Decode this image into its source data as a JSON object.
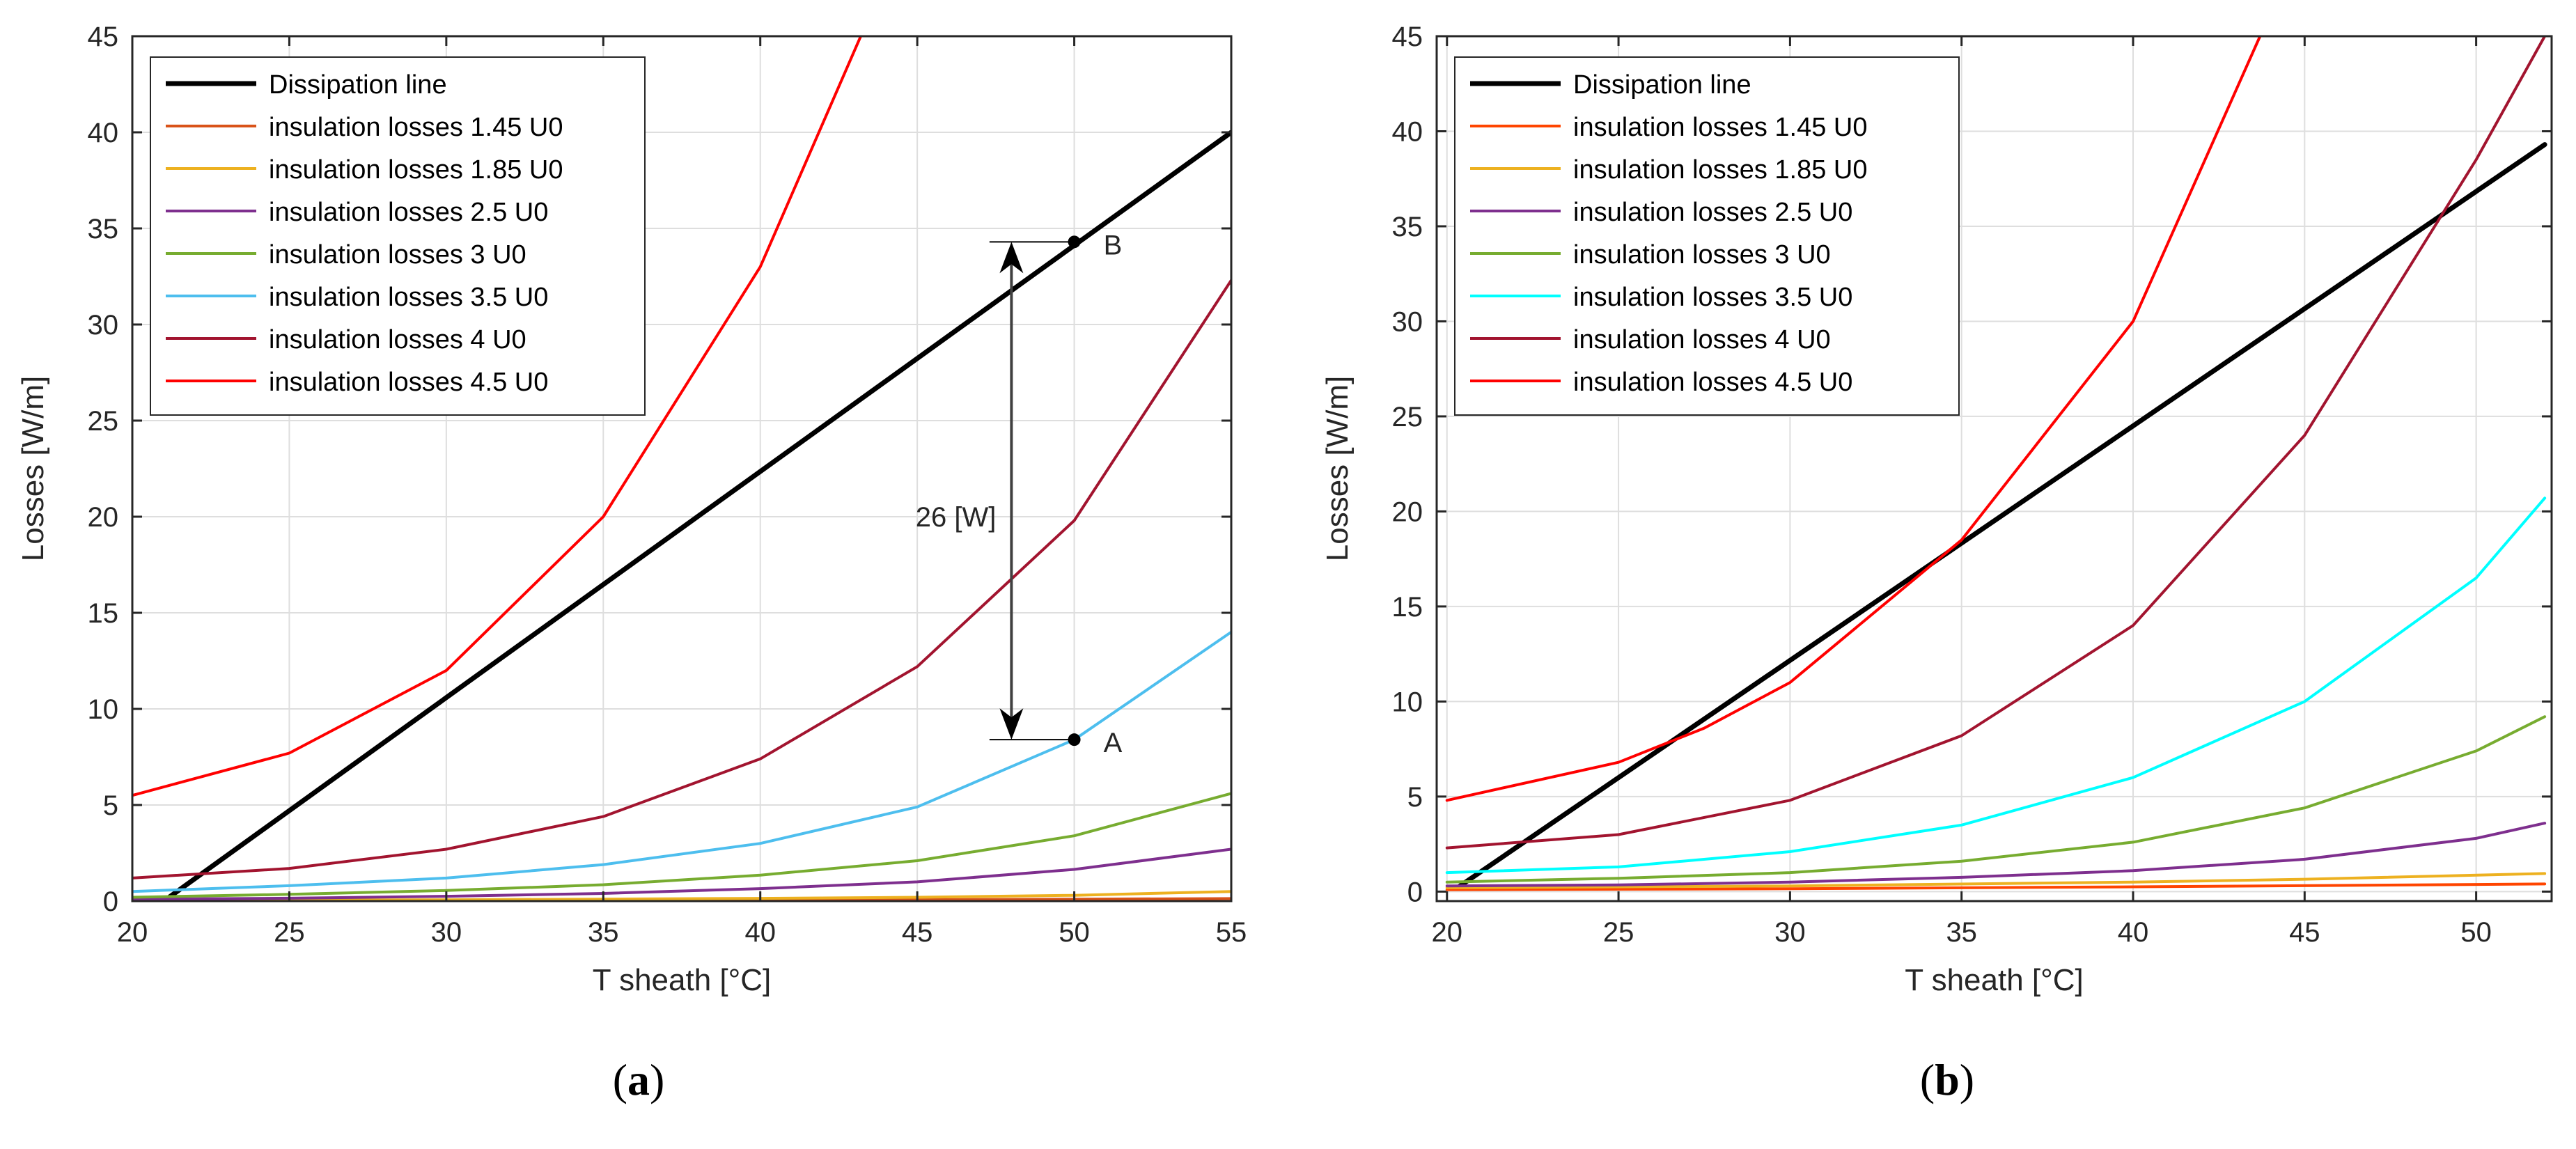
{
  "chart_data": [
    {
      "type": "line",
      "panel_caption": "(a)",
      "caption_letter": "a",
      "xlabel": "T sheath [°C]",
      "ylabel": "Losses [W/m]",
      "xlim": [
        20,
        55
      ],
      "ylim": [
        0,
        45
      ],
      "xticks": [
        20,
        25,
        30,
        35,
        40,
        45,
        50,
        55
      ],
      "yticks": [
        0,
        5,
        10,
        15,
        20,
        25,
        30,
        35,
        40,
        45
      ],
      "grid": true,
      "legend_position": "top-left",
      "series": [
        {
          "name": "Dissipation line",
          "color": "#000000",
          "bold": true,
          "x": [
            21,
            55
          ],
          "y": [
            0,
            40
          ]
        },
        {
          "name": "insulation losses 1.45 U0",
          "color": "#d95319",
          "x": [
            20,
            30,
            40,
            45,
            50,
            55
          ],
          "y": [
            0.02,
            0.03,
            0.05,
            0.07,
            0.1,
            0.13
          ]
        },
        {
          "name": "insulation losses 1.85 U0",
          "color": "#edb120",
          "x": [
            20,
            30,
            40,
            45,
            50,
            55
          ],
          "y": [
            0.04,
            0.07,
            0.14,
            0.2,
            0.3,
            0.5
          ]
        },
        {
          "name": "insulation losses 2.5 U0",
          "color": "#7e2f8e",
          "x": [
            20,
            25,
            30,
            35,
            40,
            45,
            50,
            55
          ],
          "y": [
            0.1,
            0.15,
            0.25,
            0.4,
            0.65,
            1.0,
            1.65,
            2.7
          ]
        },
        {
          "name": "insulation losses 3 U0",
          "color": "#77ac30",
          "x": [
            20,
            25,
            30,
            35,
            40,
            45,
            50,
            55
          ],
          "y": [
            0.2,
            0.35,
            0.55,
            0.85,
            1.35,
            2.1,
            3.4,
            5.6
          ]
        },
        {
          "name": "insulation losses 3.5 U0",
          "color": "#4dbeee",
          "x": [
            20,
            25,
            30,
            35,
            40,
            45,
            50,
            55
          ],
          "y": [
            0.5,
            0.8,
            1.2,
            1.9,
            3.0,
            4.9,
            8.4,
            14.0
          ]
        },
        {
          "name": "insulation losses 4 U0",
          "color": "#a2142f",
          "x": [
            20,
            25,
            30,
            35,
            40,
            45,
            50,
            55
          ],
          "y": [
            1.2,
            1.7,
            2.7,
            4.4,
            7.4,
            12.2,
            19.8,
            32.3
          ]
        },
        {
          "name": "insulation losses 4.5 U0",
          "color": "#ff0000",
          "x": [
            20,
            25,
            30,
            35,
            40,
            43.2
          ],
          "y": [
            5.5,
            7.7,
            12.0,
            20.0,
            33.0,
            45.0
          ]
        }
      ],
      "annotations": [
        {
          "label": "B",
          "x": 50,
          "y": 34.3
        },
        {
          "label": "A",
          "x": 50,
          "y": 8.4
        },
        {
          "label": "26 [W]",
          "arrow_x": 48,
          "arrow_from": 34.3,
          "arrow_to": 8.4
        }
      ]
    },
    {
      "type": "line",
      "panel_caption": "(b)",
      "caption_letter": "b",
      "xlabel": "T sheath [°C]",
      "ylabel": "Losses [W/m]",
      "xlim": [
        19.7,
        52.2
      ],
      "ylim": [
        -0.5,
        45
      ],
      "xticks": [
        20,
        25,
        30,
        35,
        40,
        45,
        50
      ],
      "yticks": [
        0,
        5,
        10,
        15,
        20,
        25,
        30,
        35,
        40,
        45
      ],
      "grid": true,
      "legend_position": "top-left",
      "series": [
        {
          "name": "Dissipation line",
          "color": "#000000",
          "bold": true,
          "x": [
            20.3,
            52
          ],
          "y": [
            0.2,
            39.3
          ]
        },
        {
          "name": "insulation losses 1.45 U0",
          "color": "#ff4500",
          "x": [
            20,
            30,
            40,
            52
          ],
          "y": [
            0.1,
            0.15,
            0.25,
            0.4
          ]
        },
        {
          "name": "insulation losses 1.85 U0",
          "color": "#edb120",
          "x": [
            20,
            30,
            40,
            45,
            52
          ],
          "y": [
            0.2,
            0.3,
            0.5,
            0.65,
            0.95
          ]
        },
        {
          "name": "insulation losses 2.5 U0",
          "color": "#7e2f8e",
          "x": [
            20,
            25,
            30,
            35,
            40,
            45,
            50,
            52
          ],
          "y": [
            0.3,
            0.35,
            0.5,
            0.75,
            1.1,
            1.7,
            2.8,
            3.6
          ]
        },
        {
          "name": "insulation losses 3 U0",
          "color": "#77ac30",
          "x": [
            20,
            25,
            30,
            35,
            40,
            45,
            50,
            52
          ],
          "y": [
            0.5,
            0.7,
            1.0,
            1.6,
            2.6,
            4.4,
            7.4,
            9.2
          ]
        },
        {
          "name": "insulation losses 3.5 U0",
          "color": "#00ffff",
          "x": [
            20,
            25,
            30,
            35,
            40,
            45,
            50,
            52
          ],
          "y": [
            1.0,
            1.3,
            2.1,
            3.5,
            6.0,
            10.0,
            16.5,
            20.7
          ]
        },
        {
          "name": "insulation losses 4 U0",
          "color": "#a2142f",
          "x": [
            20,
            25,
            30,
            35,
            40,
            45,
            50,
            52
          ],
          "y": [
            2.3,
            3.0,
            4.8,
            8.2,
            14.0,
            24.0,
            38.5,
            45.0
          ]
        },
        {
          "name": "insulation losses 4.5 U0",
          "color": "#ff0000",
          "x": [
            20,
            25,
            27.5,
            30,
            35,
            40,
            43.7
          ],
          "y": [
            4.8,
            6.8,
            8.6,
            11.0,
            18.5,
            30.0,
            45.0
          ]
        }
      ]
    }
  ]
}
